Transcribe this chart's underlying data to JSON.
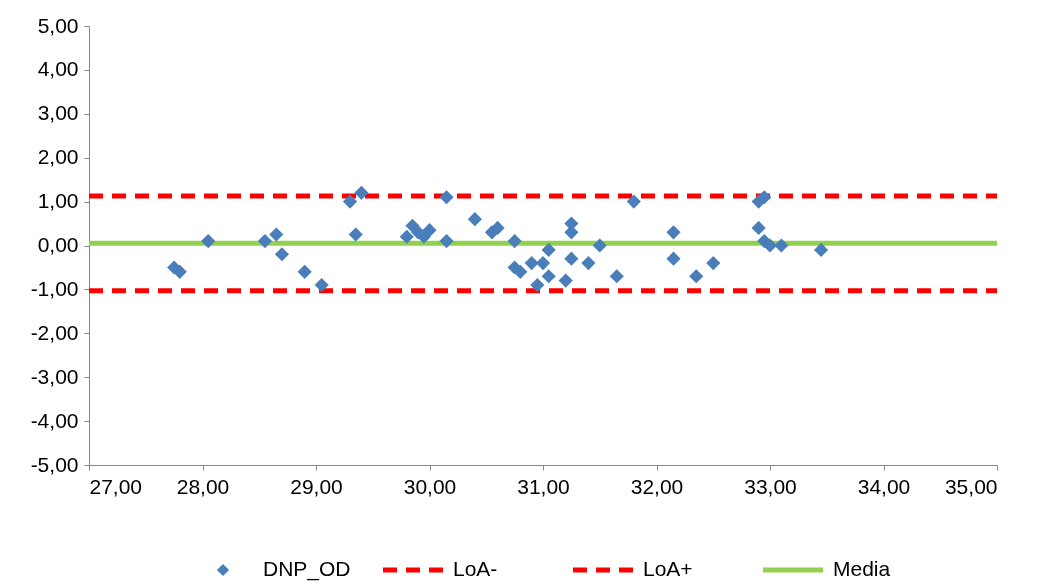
{
  "chart_data": {
    "type": "scatter",
    "legend": "bottom",
    "grid": false,
    "xlim": [
      27,
      35
    ],
    "ylim": [
      -5,
      5
    ],
    "xticks": [
      {
        "value": 27,
        "label": "27,00"
      },
      {
        "value": 28,
        "label": "28,00"
      },
      {
        "value": 29,
        "label": "29,00"
      },
      {
        "value": 30,
        "label": "30,00"
      },
      {
        "value": 31,
        "label": "31,00"
      },
      {
        "value": 32,
        "label": "32,00"
      },
      {
        "value": 33,
        "label": "33,00"
      },
      {
        "value": 34,
        "label": "34,00"
      },
      {
        "value": 35,
        "label": "35,00"
      }
    ],
    "yticks": [
      {
        "value": -5,
        "label": "-5,00"
      },
      {
        "value": -4,
        "label": "-4,00"
      },
      {
        "value": -3,
        "label": "-3,00"
      },
      {
        "value": -2,
        "label": "-2,00"
      },
      {
        "value": -1,
        "label": "-1,00"
      },
      {
        "value": 0,
        "label": "0,00"
      },
      {
        "value": 1,
        "label": "1,00"
      },
      {
        "value": 2,
        "label": "2,00"
      },
      {
        "value": 3,
        "label": "3,00"
      },
      {
        "value": 4,
        "label": "4,00"
      },
      {
        "value": 5,
        "label": "5,00"
      }
    ],
    "series": [
      {
        "name": "DNP_OD",
        "marker": "diamond",
        "color": "#4a7ebb",
        "x": [
          27.75,
          27.8,
          28.05,
          28.55,
          28.65,
          28.7,
          28.9,
          29.05,
          29.3,
          29.35,
          29.4,
          29.8,
          29.85,
          29.9,
          29.95,
          30.0,
          30.15,
          30.15,
          30.4,
          30.55,
          30.6,
          30.75,
          30.75,
          30.8,
          30.9,
          30.95,
          31.0,
          31.05,
          31.05,
          31.2,
          31.25,
          31.25,
          31.25,
          31.4,
          31.5,
          31.65,
          31.8,
          32.15,
          32.15,
          32.35,
          32.5,
          32.9,
          32.95,
          32.9,
          32.95,
          33.0,
          33.1,
          33.45
        ],
        "values": [
          -0.5,
          -0.6,
          0.1,
          0.1,
          0.25,
          -0.2,
          -0.6,
          -0.9,
          1.0,
          0.25,
          1.2,
          0.2,
          0.45,
          0.3,
          0.2,
          0.35,
          0.1,
          1.1,
          0.6,
          0.3,
          0.4,
          0.1,
          -0.5,
          -0.6,
          -0.4,
          -0.9,
          -0.4,
          -0.1,
          -0.7,
          -0.8,
          0.5,
          0.3,
          -0.3,
          -0.4,
          0.0,
          -0.7,
          1.0,
          0.3,
          -0.3,
          -0.7,
          -0.4,
          1.0,
          1.1,
          0.4,
          0.1,
          0.0,
          0.0,
          -0.1
        ]
      },
      {
        "name": "LoA-",
        "type": "line",
        "line_style": "dashed",
        "color": "#ff0000",
        "x": [
          27,
          35
        ],
        "values": [
          -1.03,
          -1.03
        ]
      },
      {
        "name": "LoA+",
        "type": "line",
        "line_style": "dashed",
        "color": "#ff0000",
        "x": [
          27,
          35
        ],
        "values": [
          1.13,
          1.13
        ]
      },
      {
        "name": "Media",
        "type": "line",
        "line_style": "solid",
        "color": "#92d050",
        "x": [
          27,
          35
        ],
        "values": [
          0.05,
          0.05
        ]
      }
    ]
  }
}
